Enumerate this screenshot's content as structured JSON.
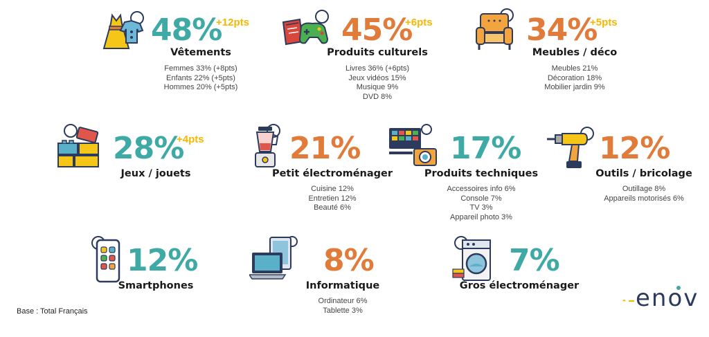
{
  "colors": {
    "teal": "#3fa9a5",
    "orange": "#e07b3a",
    "gold": "#f5b700",
    "navy": "#2c3a5e"
  },
  "chart_data": {
    "type": "infographic",
    "items": [
      {
        "category": "Vêtements",
        "value": 48,
        "value_label": "48%",
        "delta_label": "+12pts",
        "color": "teal",
        "breakdown": [
          "Femmes 33% (+8pts)",
          "Enfants 22% (+5pts)",
          "Hommes 20% (+5pts)"
        ],
        "icon": "dress-icon"
      },
      {
        "category": "Produits culturels",
        "value": 45,
        "value_label": "45%",
        "delta_label": "+6pts",
        "color": "orange",
        "breakdown": [
          "Livres 36% (+6pts)",
          "Jeux vidéos 15%",
          "Musique 9%",
          "DVD 8%"
        ],
        "icon": "book-gamepad-icon"
      },
      {
        "category": "Meubles / déco",
        "value": 34,
        "value_label": "34%",
        "delta_label": "+5pts",
        "color": "orange",
        "breakdown": [
          "Meubles 21%",
          "Décoration 18%",
          "Mobilier jardin 9%"
        ],
        "icon": "armchair-icon"
      },
      {
        "category": "Jeux / jouets",
        "value": 28,
        "value_label": "28%",
        "delta_label": "+4pts",
        "color": "teal",
        "breakdown": [],
        "icon": "toy-blocks-icon"
      },
      {
        "category": "Petit électroménager",
        "value": 21,
        "value_label": "21%",
        "delta_label": "",
        "color": "orange",
        "breakdown": [
          "Cuisine 12%",
          "Entretien 12%",
          "Beauté 6%"
        ],
        "icon": "blender-icon"
      },
      {
        "category": "Produits techniques",
        "value": 17,
        "value_label": "17%",
        "delta_label": "",
        "color": "teal",
        "breakdown": [
          "Accessoires info 6%",
          "Console 7%",
          "TV 3%",
          "Appareil photo 3%"
        ],
        "icon": "tv-camera-icon"
      },
      {
        "category": "Outils / bricolage",
        "value": 12,
        "value_label": "12%",
        "delta_label": "",
        "color": "orange",
        "breakdown": [
          "Outillage 8%",
          "Appareils motorisés 6%"
        ],
        "icon": "drill-icon"
      },
      {
        "category": "Smartphones",
        "value": 12,
        "value_label": "12%",
        "delta_label": "",
        "color": "teal",
        "breakdown": [],
        "icon": "smartphone-icon"
      },
      {
        "category": "Informatique",
        "value": 8,
        "value_label": "8%",
        "delta_label": "",
        "color": "orange",
        "breakdown": [
          "Ordinateur 6%",
          "Tablette 3%"
        ],
        "icon": "laptop-tablet-icon"
      },
      {
        "category": "Gros électroménager",
        "value": 7,
        "value_label": "7%",
        "delta_label": "",
        "color": "teal",
        "breakdown": [],
        "icon": "washing-machine-icon"
      }
    ]
  },
  "footer": {
    "base_text": "Base : Total Français",
    "logo_text": "enov"
  }
}
